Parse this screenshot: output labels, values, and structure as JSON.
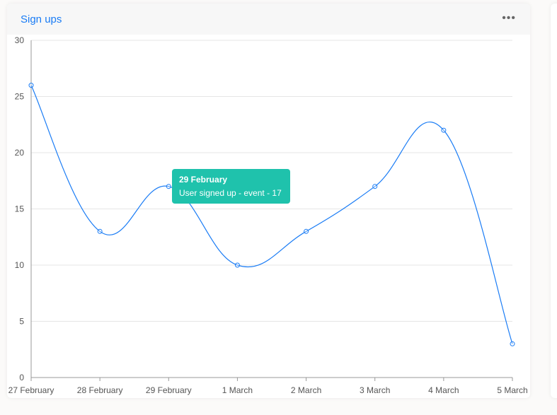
{
  "card": {
    "title": "Sign ups",
    "menu_icon": "more-horizontal-icon"
  },
  "tooltip": {
    "title": "29 February",
    "body": "User signed up - event - 17"
  },
  "chart_data": {
    "type": "line",
    "categories": [
      "27 February",
      "28 February",
      "29 February",
      "1 March",
      "2 March",
      "3 March",
      "4 March",
      "5 March"
    ],
    "series": [
      {
        "values": [
          26,
          13,
          17,
          10,
          13,
          17,
          22,
          3
        ],
        "color": "#1a7cf5"
      }
    ],
    "ylim": [
      0,
      30
    ],
    "yticks": [
      0,
      5,
      10,
      15,
      20,
      25,
      30
    ],
    "grid": true,
    "smooth": true
  }
}
